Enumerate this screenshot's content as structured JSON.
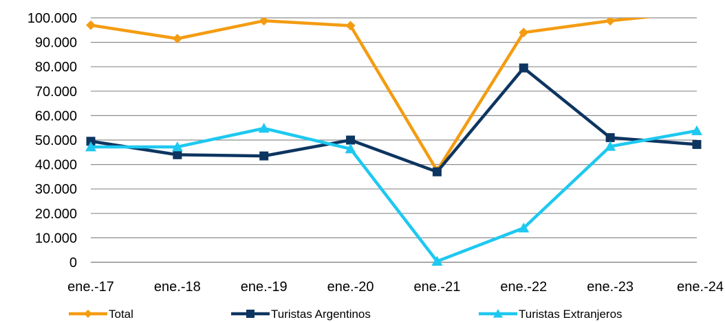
{
  "chart_data": {
    "type": "line",
    "title": "",
    "xlabel": "",
    "ylabel": "",
    "categories": [
      "ene.-17",
      "ene.-18",
      "ene.-19",
      "ene.-20",
      "ene.-21",
      "ene.-22",
      "ene.-23",
      "ene.-24"
    ],
    "y_tick_labels": [
      "0",
      "10.000",
      "20.000",
      "30.000",
      "40.000",
      "50.000",
      "60.000",
      "70.000",
      "80.000",
      "90.000",
      "100.000"
    ],
    "ylim": [
      0,
      100000
    ],
    "grid": true,
    "legend_position": "bottom",
    "series": [
      {
        "name": "Total",
        "color": "#f39c12",
        "marker": "diamond",
        "values": [
          97000,
          91500,
          98800,
          96800,
          37500,
          94000,
          98800,
          102500
        ]
      },
      {
        "name": "Turistas Argentinos",
        "color": "#0d3560",
        "marker": "square",
        "values": [
          49500,
          44000,
          43500,
          50000,
          37000,
          79500,
          51000,
          48200
        ]
      },
      {
        "name": "Turistas Extranjeros",
        "color": "#1ec8f0",
        "marker": "triangle",
        "values": [
          47200,
          47200,
          54800,
          46400,
          400,
          14000,
          47400,
          53800
        ]
      }
    ]
  }
}
